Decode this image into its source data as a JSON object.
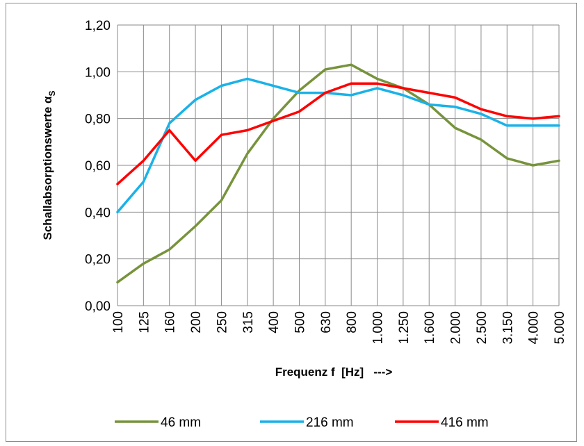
{
  "chart_data": {
    "type": "line",
    "title": "",
    "xlabel": "Frequenz f  [Hz]   --->",
    "ylabel": "Schallabsorptionswerte  α",
    "ylabel_subscript": "S",
    "categories": [
      "100",
      "125",
      "160",
      "200",
      "250",
      "315",
      "400",
      "500",
      "630",
      "800",
      "1.000",
      "1.250",
      "1.600",
      "2.000",
      "2.500",
      "3.150",
      "4.000",
      "5.000"
    ],
    "y_ticks": [
      "0,00",
      "0,20",
      "0,40",
      "0,60",
      "0,80",
      "1,00",
      "1,20"
    ],
    "ylim": [
      0,
      1.2
    ],
    "grid": true,
    "legend_position": "bottom",
    "series": [
      {
        "name": "46 mm",
        "color": "#77933c",
        "values": [
          0.1,
          0.18,
          0.24,
          0.34,
          0.45,
          0.65,
          0.8,
          0.92,
          1.01,
          1.03,
          0.97,
          0.93,
          0.86,
          0.76,
          0.71,
          0.63,
          0.6,
          0.62
        ]
      },
      {
        "name": "216 mm",
        "color": "#1ab2e8",
        "values": [
          0.4,
          0.53,
          0.78,
          0.88,
          0.94,
          0.97,
          0.94,
          0.91,
          0.91,
          0.9,
          0.93,
          0.9,
          0.86,
          0.85,
          0.82,
          0.77,
          0.77,
          0.77
        ]
      },
      {
        "name": "416 mm",
        "color": "#ff0000",
        "values": [
          0.52,
          0.62,
          0.75,
          0.62,
          0.73,
          0.75,
          0.79,
          0.83,
          0.91,
          0.95,
          0.95,
          0.93,
          0.91,
          0.89,
          0.84,
          0.81,
          0.8,
          0.81
        ]
      }
    ]
  }
}
